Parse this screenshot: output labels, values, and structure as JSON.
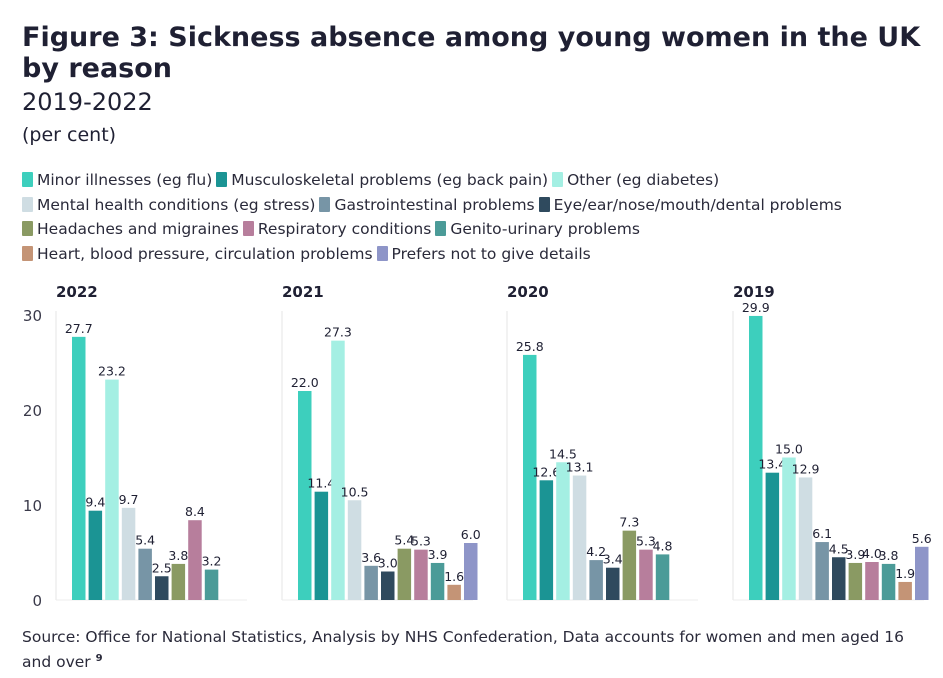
{
  "header": {
    "title": "Figure 3: Sickness absence among young women in the UK by reason",
    "subtitle": "2019-2022",
    "unit": "(per cent)"
  },
  "source": {
    "text": "Source: Office for National Statistics, Analysis by NHS Confederation, Data accounts for women and men aged 16 and over",
    "footnote": "9"
  },
  "chart_data": {
    "type": "bar",
    "ylim": [
      0,
      30
    ],
    "yticks": [
      0,
      10,
      20,
      30
    ],
    "grid": false,
    "legend_position": "top",
    "series": [
      {
        "name": "Minor illnesses (eg flu)",
        "color": "#3dcfbd"
      },
      {
        "name": "Musculoskeletal problems (eg back pain)",
        "color": "#1b9494"
      },
      {
        "name": "Other (eg diabetes)",
        "color": "#a4efe3"
      },
      {
        "name": "Mental health conditions (eg stress)",
        "color": "#cfdde3"
      },
      {
        "name": "Gastrointestinal problems",
        "color": "#7795a6"
      },
      {
        "name": "Eye/ear/nose/mouth/dental problems",
        "color": "#2f4a5e"
      },
      {
        "name": "Headaches and migraines",
        "color": "#8a9a63"
      },
      {
        "name": "Respiratory conditions",
        "color": "#b77e9c"
      },
      {
        "name": "Genito-urinary problems",
        "color": "#4b9b98"
      },
      {
        "name": "Heart, blood pressure, circulation problems",
        "color": "#c49476"
      },
      {
        "name": "Prefers not to give details",
        "color": "#8e95c8"
      }
    ],
    "panels": [
      {
        "label": "2022",
        "values": [
          27.7,
          9.4,
          23.2,
          9.7,
          5.4,
          2.5,
          3.8,
          8.4,
          3.2,
          null,
          null
        ],
        "value_labels": [
          "27.7",
          "9.4",
          "23.2",
          "9.7",
          "5.4",
          "2.5",
          "3.8",
          "8.4",
          "3.2",
          "",
          ""
        ]
      },
      {
        "label": "2021",
        "values": [
          22.0,
          11.4,
          27.3,
          10.5,
          3.6,
          3.0,
          5.4,
          5.3,
          3.9,
          1.6,
          6.0
        ],
        "value_labels": [
          "22.0",
          "11.4",
          "27.3",
          "10.5",
          "3.6",
          "3.0",
          "5.4",
          "5.3",
          "3.9",
          "1.6",
          "6.0"
        ]
      },
      {
        "label": "2020",
        "values": [
          25.8,
          12.6,
          14.5,
          13.1,
          4.2,
          3.4,
          7.3,
          5.3,
          4.8,
          null,
          null
        ],
        "value_labels": [
          "25.8",
          "12.6",
          "14.5",
          "13.1",
          "4.2",
          "3.4",
          "7.3",
          "5.3",
          "4.8",
          "",
          ""
        ]
      },
      {
        "label": "2019",
        "values": [
          29.9,
          13.4,
          15.0,
          12.9,
          6.1,
          4.5,
          3.9,
          4.0,
          3.8,
          1.9,
          5.6
        ],
        "value_labels": [
          "29.9",
          "13.4",
          "15.0",
          "12.9",
          "6.1",
          "4.5",
          "3.9",
          "4.0",
          "3.8",
          "1.9",
          "5.6"
        ]
      }
    ]
  }
}
